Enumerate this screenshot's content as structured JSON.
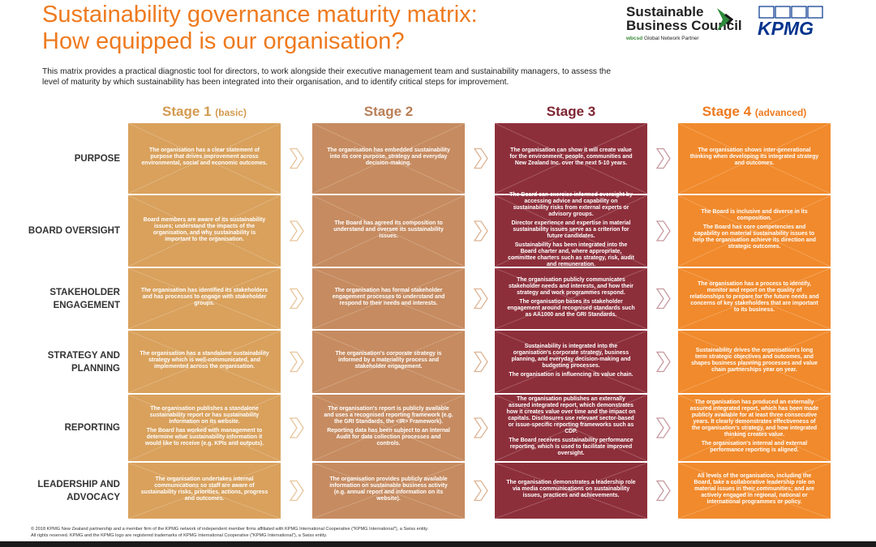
{
  "header": {
    "title_lines": [
      "Sustainability governance maturity matrix:",
      "How equipped is our organisation?"
    ],
    "intro": "This matrix provides a practical diagnostic tool for directors, to work alongside their executive management team and sustainability managers, to assess the level of maturity by which sustainability has been integrated into their organisation, and to identify critical steps for improvement."
  },
  "logos": {
    "sbc_lines": [
      "Sustainable",
      "Business Council"
    ],
    "wbcsd": "wbcsd",
    "partner": "Global Network Partner",
    "kpmg": "KPMG"
  },
  "stages": [
    {
      "name": "Stage 1",
      "qualifier": "(basic)"
    },
    {
      "name": "Stage 2"
    },
    {
      "name": "Stage 3"
    },
    {
      "name": "Stage 4",
      "qualifier": "(advanced)"
    }
  ],
  "rows": [
    {
      "label": "PURPOSE",
      "cells": [
        [
          "The organisation has a clear statement of purpose that drives improvement across environmental, social and economic outcomes."
        ],
        [
          "The organisation has embedded sustainability into its core purpose, strategy and everyday decision-making."
        ],
        [
          "The organisation can show it will create value for the environment, people, communities and New Zealand Inc. over the next 5-10 years."
        ],
        [
          "The organisation shows inter-generational thinking when developing its integrated strategy and outcomes."
        ]
      ]
    },
    {
      "label": "BOARD OVERSIGHT",
      "cells": [
        [
          "Board members are aware of its sustainability issues; understand the impacts of the organisation, and why sustainability is important to the organisation."
        ],
        [
          "The Board has agreed its composition to understand and oversee its sustainability issues."
        ],
        [
          "The Board can exercise informed oversight by accessing advice and capability on sustainability risks from external experts or advisory groups.",
          "Director experience and expertise in material sustainability issues serve as a criterion for future candidates.",
          "Sustainability has been integrated into the Board charter and, where appropriate, committee charters such as strategy, risk, audit and remuneration."
        ],
        [
          "The Board is inclusive and diverse in its composition.",
          "The Board has core competencies and capability on material sustainability issues to help the organisation achieve its direction and strategic outcomes."
        ]
      ]
    },
    {
      "label": "STAKEHOLDER ENGAGEMENT",
      "cells": [
        [
          "The organisation has identified its stakeholders and has processes to engage with stakeholder groups."
        ],
        [
          "The organisation has formal stakeholder engagement processes to understand and respond to their needs and interests."
        ],
        [
          "The organisation publicly communicates stakeholder needs and interests, and how their strategy and work programmes respond.",
          "The organisation bases its stakeholder engagement around recognised standards such as AA1000 and the GRI Standards."
        ],
        [
          "The organisation has a process to identify, monitor and report on the quality of relationships to prepare for the future needs and concerns of key stakeholders that are important to its business."
        ]
      ]
    },
    {
      "label": "STRATEGY AND PLANNING",
      "cells": [
        [
          "The organisation has a standalone sustainability strategy which is well-communicated, and implemented across the organisation."
        ],
        [
          "The organisation's corporate strategy is informed by a materiality process and stakeholder engagement."
        ],
        [
          "Sustainability is integrated into the organisation's corporate strategy, business planning, and everyday decision-making and budgeting processes.",
          "The organisation is influencing its value chain."
        ],
        [
          "Sustainability drives the organisation's long term strategic objectives and outcomes, and shapes business planning processes and value chain partnerships year on year."
        ]
      ]
    },
    {
      "label": "REPORTING",
      "cells": [
        [
          "The organisation publishes a standalone sustainability report or has sustainability information on its website.",
          "The Board has worked with management to determine what sustainability information it would like to receive (e.g. KPIs and outputs)."
        ],
        [
          "The organisation's report is publicly available and uses a recognised reporting framework (e.g. the GRI Standards, the <IR> Framework).",
          "Reporting data has been subject to an Internal Audit for data collection processes and controls."
        ],
        [
          "The organisation publishes an externally assured integrated report, which demonstrates how it creates value over time and the impact on capitals. Disclosures use relevant sector-based or issue-specific reporting frameworks such as CDP.",
          "The Board receives sustainability performance reporting, which is used to facilitate improved oversight."
        ],
        [
          "The organisation has produced an externally assured integrated report, which has been made publicly available for at least three consecutive years. It clearly demonstrates effectiveness of the organisation's strategy, and how integrated thinking creates value.",
          "The organisation's internal and external performance reporting is aligned."
        ]
      ]
    },
    {
      "label": "LEADERSHIP AND ADVOCACY",
      "cells": [
        [
          "The organisation undertakes internal communications so staff are aware of sustainability risks, priorities, actions, progress and outcomes."
        ],
        [
          "The organisation provides publicly available information on sustainable business activity (e.g. annual report and information on its website)."
        ],
        [
          "The organisation demonstrates a leadership role via media communications on sustainability issues, practices and achievements."
        ],
        [
          "All levels of the organisation, including the Board, take a collaborative leadership role on material issues in their communities; and are actively engaged in regional, national or international programmes or policy."
        ]
      ]
    }
  ],
  "footer": [
    "© 2018 KPMG New Zealand partnership and a member firm of the KPMG network of independent member firms affiliated with KPMG International Cooperative (\"KPMG International\"), a Swiss entity.",
    "All rights reserved. KPMG and the KPMG logo are registered trademarks of KPMG International Cooperative (\"KPMG International\"), a Swiss entity."
  ]
}
